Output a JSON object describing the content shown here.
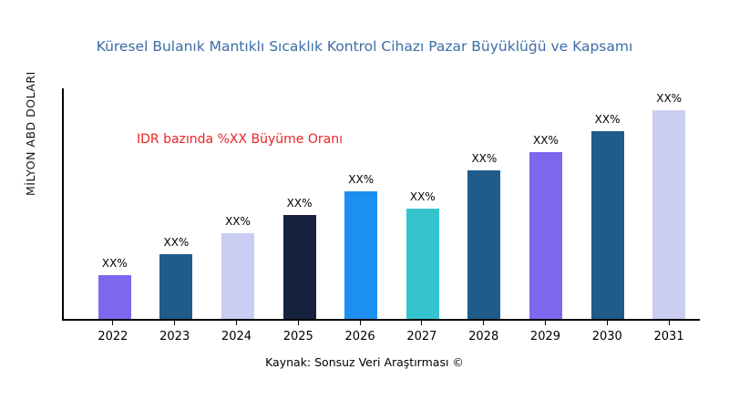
{
  "title": "Küresel Bulanık Mantıklı Sıcaklık Kontrol Cihazı Pazar Büyüklüğü ve Kapsamı",
  "ylabel": "MİLYON ABD DOLARI",
  "annotation": "IDR bazında %XX Büyüme Oranı",
  "source": "Kaynak: Sonsuz Veri Araştırması ©",
  "chart_data": {
    "type": "bar",
    "title": "Küresel Bulanık Mantıklı Sıcaklık Kontrol Cihazı Pazar Büyüklüğü ve Kapsamı",
    "xlabel": "",
    "ylabel": "MİLYON ABD DOLARI",
    "categories": [
      "2022",
      "2023",
      "2024",
      "2025",
      "2026",
      "2027",
      "2028",
      "2029",
      "2030",
      "2031"
    ],
    "values": [
      21,
      31,
      41,
      50,
      61,
      53,
      71,
      80,
      90,
      100
    ],
    "bar_labels": [
      "XX%",
      "XX%",
      "XX%",
      "XX%",
      "XX%",
      "XX%",
      "XX%",
      "XX%",
      "XX%",
      "XX%"
    ],
    "colors": [
      "#7b68ee",
      "#1f5c8b",
      "#c9cdf2",
      "#16213e",
      "#1d8ff2",
      "#35c4cd",
      "#1f5c8b",
      "#7b68ee",
      "#1f5c8b",
      "#c9cdf2"
    ],
    "annotation": "IDR bazında %XX Büyüme Oranı",
    "ylim": [
      0,
      110
    ],
    "grid": false,
    "legend": "none"
  },
  "accent_colors": {
    "title_blue": "#3c6da6",
    "annotation_red": "#ee2222",
    "axis_black": "#000000"
  }
}
